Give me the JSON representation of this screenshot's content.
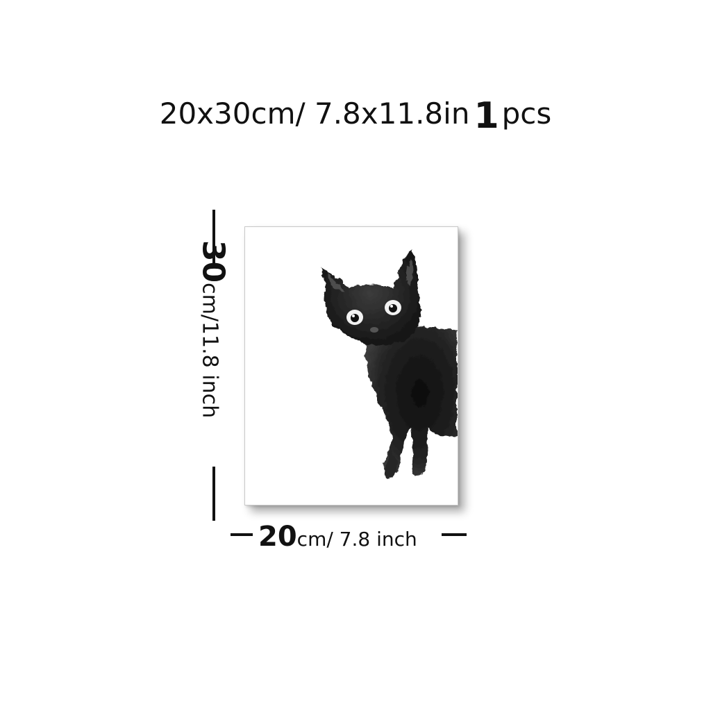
{
  "title": {
    "size_text": "20x30cm/ 7.8x11.8in",
    "quantity": "1",
    "unit": "pcs"
  },
  "height_label": {
    "number": "30",
    "rest": "cm/11.8 inch"
  },
  "width_label": {
    "number": "20",
    "rest": "cm/ 7.8 inch"
  },
  "colors": {
    "text": "#111111",
    "poster_background": "#ffffff",
    "cat_ink": "#1b1b1b"
  },
  "illustration": "watercolor-black-kitten"
}
